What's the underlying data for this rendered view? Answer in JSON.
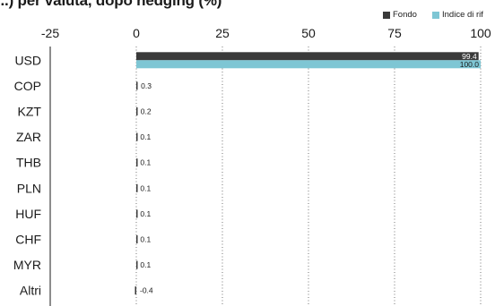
{
  "title": "...) per valuta, dopo hedging (%)",
  "legend": [
    {
      "label": "Fondo",
      "color": "#3a3a3a"
    },
    {
      "label": "Indice di rif",
      "color": "#7ec6d4"
    }
  ],
  "chart_data": {
    "type": "bar",
    "orientation": "horizontal",
    "title": "...) per valuta, dopo hedging (%)",
    "categories": [
      "USD",
      "COP",
      "KZT",
      "ZAR",
      "THB",
      "PLN",
      "HUF",
      "CHF",
      "MYR",
      "Altri"
    ],
    "series": [
      {
        "name": "Fondo",
        "color": "#3a3a3a",
        "values": [
          99.4,
          0.3,
          0.2,
          0.1,
          0.1,
          0.1,
          0.1,
          0.1,
          0.1,
          -0.4
        ]
      },
      {
        "name": "Indice di rif",
        "color": "#7ec6d4",
        "values": [
          100.0,
          null,
          null,
          null,
          null,
          null,
          null,
          null,
          null,
          null
        ]
      }
    ],
    "value_labels": {
      "Fondo": [
        "99.4",
        "0.3",
        "0.2",
        "0.1",
        "0.1",
        "0.1",
        "0.1",
        "0.1",
        "0.1",
        "-0.4"
      ],
      "Indice di rif": [
        "100.0",
        "",
        "",
        "",
        "",
        "",
        "",
        "",
        "",
        ""
      ]
    },
    "xlim": [
      -25,
      100
    ],
    "xticks": [
      "-25",
      "0",
      "25",
      "50",
      "75",
      "100"
    ],
    "grid": "vertical-dotted",
    "legend_position": "top-right"
  }
}
